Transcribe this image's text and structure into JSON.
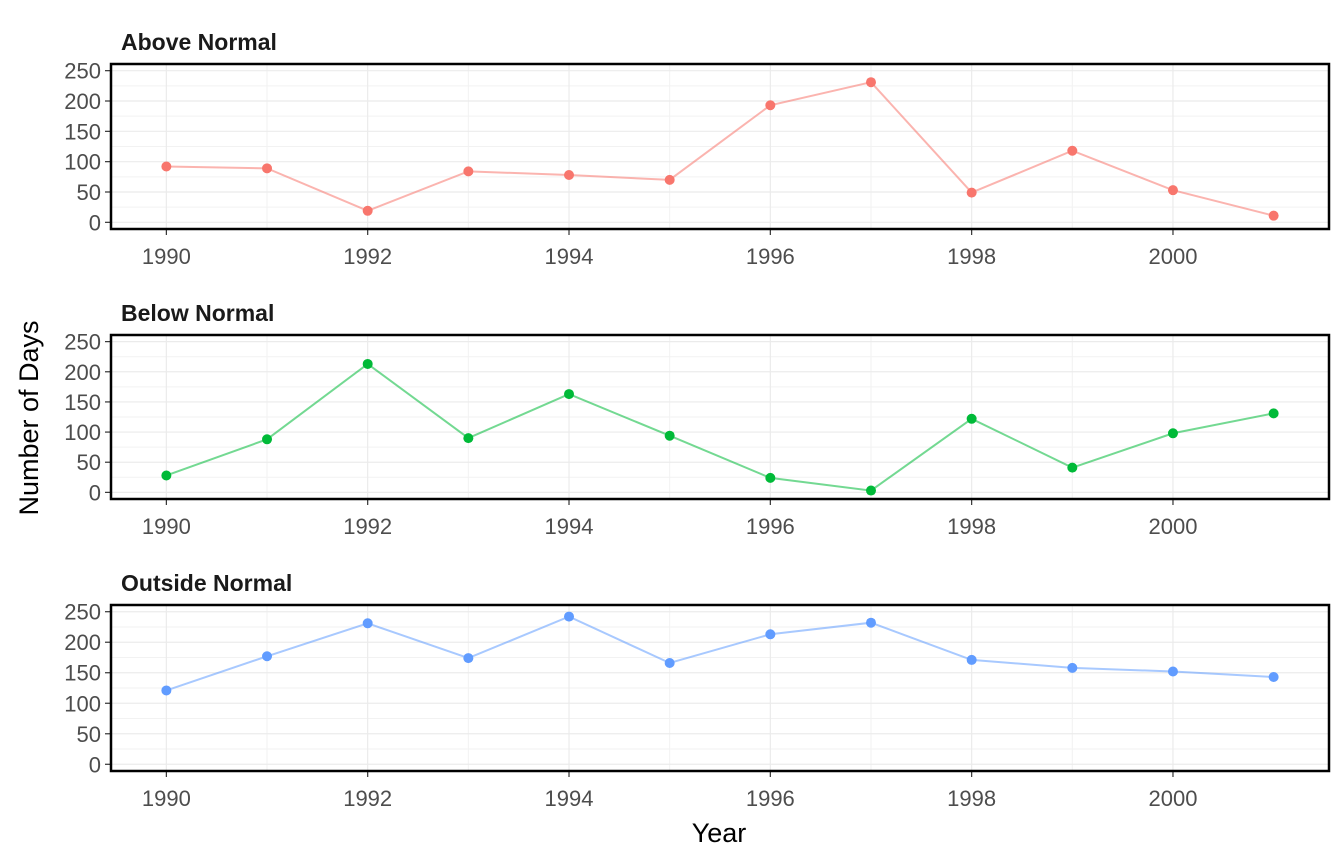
{
  "chart_data": {
    "type": "line",
    "xlabel": "Year",
    "ylabel": "Number of Days",
    "x": [
      1990,
      1991,
      1992,
      1993,
      1994,
      1995,
      1996,
      1997,
      1998,
      1999,
      2000,
      2001
    ],
    "x_ticks": [
      "1990",
      "1992",
      "1994",
      "1996",
      "1998",
      "2000"
    ],
    "y_ticks": [
      "0",
      "50",
      "100",
      "150",
      "200",
      "250"
    ],
    "ylim": [
      0,
      250
    ],
    "grid": true,
    "panels": [
      {
        "title": "Above Normal",
        "color": "#F8766D",
        "values": [
          92,
          89,
          19,
          84,
          78,
          70,
          193,
          231,
          49,
          118,
          53,
          11
        ]
      },
      {
        "title": "Below Normal",
        "color": "#00BA38",
        "values": [
          28,
          88,
          213,
          90,
          163,
          94,
          24,
          3,
          122,
          41,
          98,
          131
        ]
      },
      {
        "title": "Outside Normal",
        "color": "#619CFF",
        "values": [
          121,
          177,
          231,
          174,
          242,
          166,
          213,
          232,
          171,
          158,
          152,
          143
        ]
      }
    ]
  }
}
